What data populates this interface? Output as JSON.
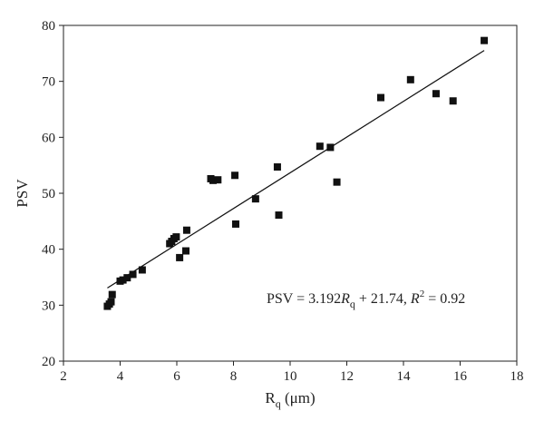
{
  "chart_data": {
    "type": "scatter",
    "title": "",
    "xlabel": "R",
    "xlabel_sub": "q",
    "xlabel_unit": " (μm)",
    "ylabel": "PSV",
    "xlim": [
      2,
      18
    ],
    "ylim": [
      20,
      80
    ],
    "xticks": [
      2,
      4,
      6,
      8,
      10,
      12,
      14,
      16,
      18
    ],
    "yticks": [
      20,
      30,
      40,
      50,
      60,
      70,
      80
    ],
    "marker": "square",
    "marker_color": "#111111",
    "points": [
      {
        "x": 3.55,
        "y": 29.8
      },
      {
        "x": 3.62,
        "y": 30.2
      },
      {
        "x": 3.68,
        "y": 30.6
      },
      {
        "x": 3.72,
        "y": 31.9
      },
      {
        "x": 4.0,
        "y": 34.3
      },
      {
        "x": 4.1,
        "y": 34.5
      },
      {
        "x": 4.25,
        "y": 34.9
      },
      {
        "x": 4.45,
        "y": 35.5
      },
      {
        "x": 4.78,
        "y": 36.3
      },
      {
        "x": 5.75,
        "y": 41.0
      },
      {
        "x": 5.82,
        "y": 41.4
      },
      {
        "x": 5.9,
        "y": 41.9
      },
      {
        "x": 5.98,
        "y": 42.2
      },
      {
        "x": 6.1,
        "y": 38.5
      },
      {
        "x": 6.32,
        "y": 39.7
      },
      {
        "x": 6.35,
        "y": 43.4
      },
      {
        "x": 7.2,
        "y": 52.6
      },
      {
        "x": 7.28,
        "y": 52.3
      },
      {
        "x": 7.45,
        "y": 52.4
      },
      {
        "x": 8.05,
        "y": 53.2
      },
      {
        "x": 8.08,
        "y": 44.5
      },
      {
        "x": 8.78,
        "y": 49.0
      },
      {
        "x": 9.55,
        "y": 54.7
      },
      {
        "x": 9.6,
        "y": 46.1
      },
      {
        "x": 11.05,
        "y": 58.4
      },
      {
        "x": 11.42,
        "y": 58.2
      },
      {
        "x": 11.65,
        "y": 52.0
      },
      {
        "x": 13.2,
        "y": 67.1
      },
      {
        "x": 14.25,
        "y": 70.3
      },
      {
        "x": 15.15,
        "y": 67.8
      },
      {
        "x": 15.75,
        "y": 66.5
      },
      {
        "x": 16.85,
        "y": 77.3
      }
    ],
    "fit": {
      "slope": 3.192,
      "intercept": 21.74,
      "x_range": [
        3.55,
        16.85
      ]
    },
    "annotation": {
      "lhs": "PSV = 3.192",
      "var": "R",
      "var_sub": "q",
      "mid": " + 21.74, ",
      "r2_var": "R",
      "r2_sup": "2",
      "rhs": " = 0.92"
    }
  }
}
